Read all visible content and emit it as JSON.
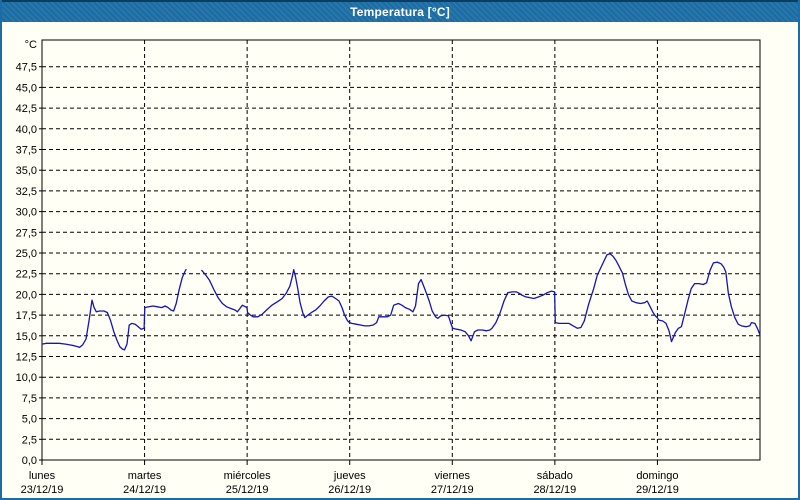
{
  "window": {
    "title": "Temperatura [°C]"
  },
  "colors": {
    "titlebar_bg": "#1d70a7",
    "titlebar_text": "#ffffff",
    "frame_border": "#1c6da6",
    "frame_top": "#0b3d61",
    "panel_bg": "#fffff6",
    "grid": "#000000",
    "line": "#1414b8"
  },
  "chart_data": {
    "type": "line",
    "title": "Temperatura [°C]",
    "grid": true,
    "legend": "none",
    "ylim": [
      0,
      50.7
    ],
    "xlim_hours": [
      0,
      168
    ],
    "y_axis": {
      "unit": "°C",
      "ticks": [
        {
          "value": 0,
          "label": "0,0"
        },
        {
          "value": 2.5,
          "label": "2,5"
        },
        {
          "value": 5,
          "label": "5,0"
        },
        {
          "value": 7.5,
          "label": "7,5"
        },
        {
          "value": 10,
          "label": "10,0"
        },
        {
          "value": 12.5,
          "label": "12,5"
        },
        {
          "value": 15,
          "label": "15,0"
        },
        {
          "value": 17.5,
          "label": "17,5"
        },
        {
          "value": 20,
          "label": "20,0"
        },
        {
          "value": 22.5,
          "label": "22,5"
        },
        {
          "value": 25,
          "label": "25,0"
        },
        {
          "value": 27.5,
          "label": "27,5"
        },
        {
          "value": 30,
          "label": "30,0"
        },
        {
          "value": 32.5,
          "label": "32,5"
        },
        {
          "value": 35,
          "label": "35,0"
        },
        {
          "value": 37.5,
          "label": "37,5"
        },
        {
          "value": 40,
          "label": "40,0"
        },
        {
          "value": 42.5,
          "label": "42,5"
        },
        {
          "value": 45,
          "label": "45,0"
        },
        {
          "value": 47.5,
          "label": "47,5"
        }
      ]
    },
    "x_axis": {
      "days": [
        {
          "name": "lunes",
          "date": "23/12/19"
        },
        {
          "name": "martes",
          "date": "24/12/19"
        },
        {
          "name": "miércoles",
          "date": "25/12/19"
        },
        {
          "name": "jueves",
          "date": "26/12/19"
        },
        {
          "name": "viernes",
          "date": "27/12/19"
        },
        {
          "name": "sábado",
          "date": "28/12/19"
        },
        {
          "name": "domingo",
          "date": "29/12/19"
        }
      ]
    },
    "series": [
      {
        "name": "Temperatura",
        "units": "°C",
        "note": "t = hours since lunes 00:00; null value = data gap (martes ~09:45-13:25)",
        "points": [
          [
            0,
            14.0
          ],
          [
            1,
            14.1
          ],
          [
            2.5,
            14.1
          ],
          [
            4,
            14.1
          ],
          [
            5.5,
            14.0
          ],
          [
            6.5,
            13.9
          ],
          [
            7.5,
            13.8
          ],
          [
            8.3,
            13.7
          ],
          [
            8.8,
            13.6
          ],
          [
            9.5,
            13.9
          ],
          [
            10.3,
            14.6
          ],
          [
            11,
            16.8
          ],
          [
            11.7,
            19.3
          ],
          [
            12.2,
            18.4
          ],
          [
            12.7,
            17.9
          ],
          [
            13.5,
            18.0
          ],
          [
            14.5,
            18.0
          ],
          [
            15.3,
            17.8
          ],
          [
            16,
            16.9
          ],
          [
            16.8,
            15.5
          ],
          [
            17.5,
            14.5
          ],
          [
            18.2,
            13.7
          ],
          [
            18.8,
            13.4
          ],
          [
            19.3,
            13.3
          ],
          [
            19.9,
            14.0
          ],
          [
            20.4,
            16.3
          ],
          [
            21,
            16.5
          ],
          [
            21.8,
            16.4
          ],
          [
            22.5,
            16.1
          ],
          [
            23.2,
            15.8
          ],
          [
            23.9,
            15.9
          ],
          [
            24.05,
            18.4
          ],
          [
            25,
            18.5
          ],
          [
            26,
            18.6
          ],
          [
            27,
            18.5
          ],
          [
            28,
            18.4
          ],
          [
            28.8,
            18.6
          ],
          [
            29.5,
            18.4
          ],
          [
            30.2,
            18.1
          ],
          [
            30.8,
            18.0
          ],
          [
            31.4,
            18.9
          ],
          [
            32.1,
            20.6
          ],
          [
            32.8,
            22.0
          ],
          [
            33.4,
            22.7
          ],
          [
            33.7,
            23.0
          ],
          [
            35.5,
            null
          ],
          [
            37.4,
            22.9
          ],
          [
            38.2,
            22.4
          ],
          [
            39.2,
            21.7
          ],
          [
            40.2,
            20.6
          ],
          [
            41.2,
            19.6
          ],
          [
            42.2,
            18.9
          ],
          [
            43.2,
            18.5
          ],
          [
            44.2,
            18.3
          ],
          [
            45.2,
            18.1
          ],
          [
            45.7,
            17.9
          ],
          [
            46.3,
            18.3
          ],
          [
            46.9,
            18.7
          ],
          [
            47.6,
            18.5
          ],
          [
            47.95,
            18.4
          ],
          [
            48.1,
            17.8
          ],
          [
            48.8,
            17.5
          ],
          [
            49.4,
            17.3
          ],
          [
            50.5,
            17.3
          ],
          [
            51.5,
            17.6
          ],
          [
            52.5,
            18.1
          ],
          [
            53.8,
            18.7
          ],
          [
            55,
            19.1
          ],
          [
            56.2,
            19.5
          ],
          [
            57.2,
            20.2
          ],
          [
            58,
            21.0
          ],
          [
            58.6,
            22.2
          ],
          [
            58.9,
            23.0
          ],
          [
            59.3,
            22.2
          ],
          [
            59.8,
            20.8
          ],
          [
            60.4,
            19.0
          ],
          [
            61,
            17.8
          ],
          [
            61.5,
            17.2
          ],
          [
            62.2,
            17.5
          ],
          [
            63,
            17.8
          ],
          [
            64,
            18.1
          ],
          [
            65,
            18.6
          ],
          [
            66,
            19.2
          ],
          [
            67,
            19.7
          ],
          [
            67.8,
            19.8
          ],
          [
            68.7,
            19.5
          ],
          [
            69.5,
            19.2
          ],
          [
            70.2,
            18.4
          ],
          [
            70.8,
            17.5
          ],
          [
            71.5,
            16.8
          ],
          [
            71.95,
            16.6
          ],
          [
            72.5,
            16.5
          ],
          [
            73.5,
            16.4
          ],
          [
            74.5,
            16.3
          ],
          [
            75.5,
            16.2
          ],
          [
            76.5,
            16.2
          ],
          [
            77.5,
            16.3
          ],
          [
            78.3,
            16.6
          ],
          [
            78.8,
            17.3
          ],
          [
            79.8,
            17.3
          ],
          [
            80.8,
            17.3
          ],
          [
            81.6,
            17.5
          ],
          [
            82.3,
            18.7
          ],
          [
            83.4,
            18.9
          ],
          [
            84.2,
            18.7
          ],
          [
            85,
            18.4
          ],
          [
            86,
            18.2
          ],
          [
            86.8,
            17.9
          ],
          [
            87.4,
            18.6
          ],
          [
            88.1,
            21.3
          ],
          [
            88.7,
            21.8
          ],
          [
            89.3,
            21.0
          ],
          [
            89.9,
            20.2
          ],
          [
            90.6,
            19.2
          ],
          [
            91.3,
            18.0
          ],
          [
            92.1,
            17.3
          ],
          [
            92.6,
            17.1
          ],
          [
            93.3,
            17.4
          ],
          [
            94.2,
            17.5
          ],
          [
            95.1,
            17.4
          ],
          [
            95.8,
            16.3
          ],
          [
            96.1,
            15.9
          ],
          [
            97,
            15.8
          ],
          [
            98,
            15.7
          ],
          [
            99,
            15.5
          ],
          [
            99.8,
            15.0
          ],
          [
            100.4,
            14.4
          ],
          [
            101.2,
            15.5
          ],
          [
            102,
            15.7
          ],
          [
            103,
            15.7
          ],
          [
            104,
            15.6
          ],
          [
            104.8,
            15.7
          ],
          [
            105.3,
            15.9
          ],
          [
            106.2,
            16.6
          ],
          [
            107.2,
            17.8
          ],
          [
            108.1,
            19.2
          ],
          [
            109,
            20.2
          ],
          [
            110,
            20.3
          ],
          [
            111,
            20.3
          ],
          [
            111.8,
            20.1
          ],
          [
            112.3,
            19.9
          ],
          [
            113.2,
            19.7
          ],
          [
            114.2,
            19.6
          ],
          [
            115.1,
            19.5
          ],
          [
            116.2,
            19.7
          ],
          [
            117.2,
            19.9
          ],
          [
            118.2,
            20.2
          ],
          [
            119.2,
            20.4
          ],
          [
            119.95,
            20.3
          ],
          [
            120.1,
            16.6
          ],
          [
            121,
            16.5
          ],
          [
            122,
            16.5
          ],
          [
            123.3,
            16.5
          ],
          [
            124.3,
            16.2
          ],
          [
            125.3,
            15.9
          ],
          [
            126.1,
            16.0
          ],
          [
            126.9,
            16.8
          ],
          [
            127.9,
            18.8
          ],
          [
            129.1,
            20.7
          ],
          [
            129.9,
            22.3
          ],
          [
            131,
            23.5
          ],
          [
            132.2,
            24.8
          ],
          [
            132.9,
            24.9
          ],
          [
            133.6,
            24.6
          ],
          [
            134.3,
            24.1
          ],
          [
            135,
            23.4
          ],
          [
            135.8,
            22.6
          ],
          [
            136.5,
            21.2
          ],
          [
            137.2,
            20.0
          ],
          [
            138,
            19.2
          ],
          [
            139,
            19.0
          ],
          [
            140,
            18.9
          ],
          [
            141,
            19.0
          ],
          [
            141.6,
            19.2
          ],
          [
            142.3,
            18.5
          ],
          [
            142.9,
            17.9
          ],
          [
            143.5,
            17.4
          ],
          [
            143.95,
            17.2
          ],
          [
            144.3,
            16.9
          ],
          [
            145.2,
            16.8
          ],
          [
            146,
            16.5
          ],
          [
            146.7,
            15.6
          ],
          [
            147.3,
            14.3
          ],
          [
            148.2,
            15.4
          ],
          [
            148.9,
            15.9
          ],
          [
            149.6,
            16.1
          ],
          [
            150.2,
            17.3
          ],
          [
            151.2,
            19.4
          ],
          [
            151.9,
            20.7
          ],
          [
            152.7,
            21.3
          ],
          [
            153.7,
            21.3
          ],
          [
            154.7,
            21.2
          ],
          [
            155.5,
            21.4
          ],
          [
            156.3,
            22.9
          ],
          [
            157.1,
            23.8
          ],
          [
            158,
            23.9
          ],
          [
            158.9,
            23.7
          ],
          [
            159.5,
            23.3
          ],
          [
            160,
            22.7
          ],
          [
            160.6,
            20.1
          ],
          [
            161.3,
            18.5
          ],
          [
            162.1,
            17.2
          ],
          [
            162.9,
            16.4
          ],
          [
            163.7,
            16.2
          ],
          [
            164.7,
            16.1
          ],
          [
            165.6,
            16.2
          ],
          [
            166,
            16.6
          ],
          [
            166.8,
            16.5
          ],
          [
            167.4,
            15.9
          ],
          [
            168,
            15.1
          ]
        ]
      }
    ]
  }
}
